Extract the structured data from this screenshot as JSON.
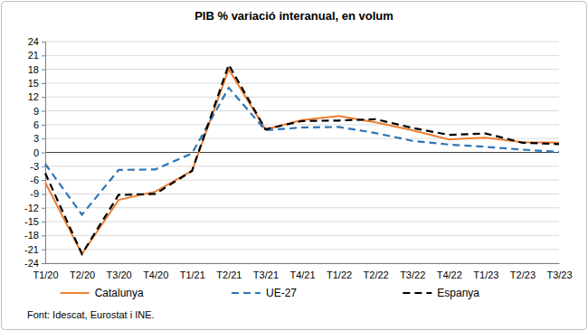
{
  "chart_data": {
    "type": "line",
    "title": "PIB % variació interanual, en volum",
    "source": "Font: Idescat, Eurostat i INE.",
    "categories": [
      "T1/20",
      "T2/20",
      "T3/20",
      "T4/20",
      "T1/21",
      "T2/21",
      "T3/21",
      "T4/21",
      "T1/22",
      "T2/22",
      "T3/22",
      "T4/22",
      "T1/23",
      "T2/23",
      "T3/23"
    ],
    "series": [
      {
        "name": "Catalunya",
        "color": "#ED7D31",
        "line_style": "solid",
        "values": [
          -6.5,
          -22,
          -10.3,
          -8.5,
          -4,
          18,
          5,
          7,
          7.9,
          6.5,
          4.8,
          2.8,
          3.2,
          2.2,
          2.1
        ]
      },
      {
        "name": "UE-27",
        "color": "#2E75B6",
        "line_style": "dashed",
        "values": [
          -2.5,
          -13.5,
          -3.8,
          -3.7,
          -0.2,
          14,
          4.8,
          5.4,
          5.5,
          4.2,
          2.5,
          1.7,
          1.2,
          0.6,
          0.1
        ]
      },
      {
        "name": "Espanya",
        "color": "#000000",
        "line_style": "dashed",
        "values": [
          -4.5,
          -22,
          -9.2,
          -9,
          -4,
          19,
          5,
          6.8,
          6.9,
          7.2,
          5.3,
          3.8,
          4.1,
          2.1,
          1.8
        ]
      }
    ],
    "ylim": [
      -24,
      24
    ],
    "yticks": [
      -24,
      -21,
      -18,
      -15,
      -12,
      -9,
      -6,
      -3,
      0,
      3,
      6,
      9,
      12,
      15,
      18,
      21,
      24
    ],
    "grid": true,
    "legend": "bottom"
  }
}
